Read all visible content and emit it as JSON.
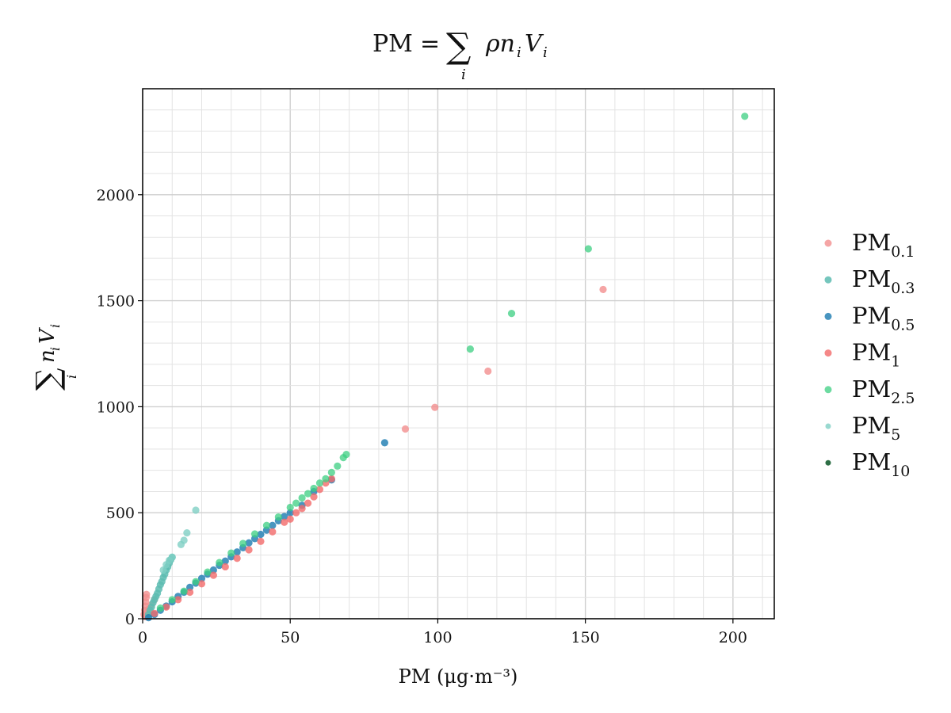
{
  "chart_data": {
    "type": "scatter",
    "title": "PM = ∑ ρ nᵢ Vᵢ",
    "title_parts": {
      "lhs": "PM",
      "eq": "=",
      "sum": "∑",
      "index": "i",
      "term": "ρn",
      "var": "V"
    },
    "xlabel": "PM (μg·m⁻³)",
    "ylabel": "∑ nᵢ Vᵢ",
    "ylabel_parts": {
      "sum": "∑",
      "index": "i",
      "term": "n",
      "var": "V"
    },
    "xlim": [
      0,
      214
    ],
    "ylim": [
      0,
      2500
    ],
    "xticks": [
      0,
      50,
      100,
      150,
      200
    ],
    "yticks": [
      0,
      500,
      1000,
      1500,
      2000
    ],
    "x_minor_step": 10,
    "y_minor_step": 100,
    "grid": true,
    "legend_position": "right",
    "series": [
      {
        "name": "PM0.1",
        "base": "PM",
        "sub": "0.1",
        "color": "#f28e8e",
        "opacity": 0.8,
        "points": [
          [
            0.5,
            20
          ],
          [
            0.7,
            40
          ],
          [
            0.9,
            60
          ],
          [
            1.0,
            80
          ],
          [
            1.2,
            100
          ],
          [
            1.3,
            115
          ],
          [
            0.8,
            10
          ],
          [
            1.5,
            30
          ],
          [
            2,
            45
          ],
          [
            3,
            65
          ],
          [
            4,
            90
          ],
          [
            89,
            895
          ],
          [
            99,
            997
          ],
          [
            117,
            1168
          ],
          [
            156,
            1553
          ]
        ]
      },
      {
        "name": "PM0.3",
        "base": "PM",
        "sub": "0.3",
        "color": "#5dbcb1",
        "opacity": 0.85,
        "points": [
          [
            2,
            20
          ],
          [
            2.5,
            40
          ],
          [
            3,
            55
          ],
          [
            3.5,
            75
          ],
          [
            4,
            90
          ],
          [
            4.5,
            105
          ],
          [
            5,
            120
          ],
          [
            5.5,
            140
          ],
          [
            6,
            160
          ],
          [
            6.5,
            175
          ],
          [
            7,
            195
          ],
          [
            7.5,
            210
          ],
          [
            8,
            230
          ],
          [
            8.5,
            245
          ],
          [
            9,
            262
          ],
          [
            9.5,
            278
          ],
          [
            10,
            290
          ]
        ]
      },
      {
        "name": "PM0.5",
        "base": "PM",
        "sub": "0.5",
        "color": "#1a7bb0",
        "opacity": 0.8,
        "points": [
          [
            2,
            5
          ],
          [
            4,
            20
          ],
          [
            6,
            40
          ],
          [
            8,
            60
          ],
          [
            10,
            80
          ],
          [
            12,
            105
          ],
          [
            14,
            125
          ],
          [
            16,
            148
          ],
          [
            18,
            168
          ],
          [
            20,
            190
          ],
          [
            22,
            210
          ],
          [
            24,
            230
          ],
          [
            26,
            252
          ],
          [
            28,
            272
          ],
          [
            30,
            292
          ],
          [
            32,
            315
          ],
          [
            34,
            335
          ],
          [
            36,
            358
          ],
          [
            38,
            378
          ],
          [
            40,
            398
          ],
          [
            42,
            418
          ],
          [
            44,
            440
          ],
          [
            46,
            462
          ],
          [
            48,
            482
          ],
          [
            50,
            500
          ],
          [
            54,
            535
          ],
          [
            58,
            600
          ],
          [
            64,
            655
          ],
          [
            82,
            830
          ]
        ]
      },
      {
        "name": "PM1",
        "base": "PM",
        "sub": "1",
        "color": "#f26a6a",
        "opacity": 0.8,
        "points": [
          [
            4,
            25
          ],
          [
            8,
            55
          ],
          [
            12,
            90
          ],
          [
            16,
            125
          ],
          [
            20,
            165
          ],
          [
            24,
            205
          ],
          [
            28,
            245
          ],
          [
            32,
            285
          ],
          [
            36,
            325
          ],
          [
            40,
            365
          ],
          [
            44,
            410
          ],
          [
            48,
            455
          ],
          [
            50,
            470
          ],
          [
            52,
            500
          ],
          [
            54,
            520
          ],
          [
            56,
            545
          ],
          [
            58,
            575
          ],
          [
            60,
            610
          ],
          [
            62,
            640
          ],
          [
            64,
            660
          ]
        ]
      },
      {
        "name": "PM2.5",
        "base": "PM",
        "sub": "2.5",
        "color": "#3ccf82",
        "opacity": 0.75,
        "points": [
          [
            6,
            50
          ],
          [
            10,
            90
          ],
          [
            14,
            130
          ],
          [
            18,
            175
          ],
          [
            22,
            220
          ],
          [
            26,
            265
          ],
          [
            30,
            310
          ],
          [
            34,
            355
          ],
          [
            38,
            400
          ],
          [
            42,
            440
          ],
          [
            46,
            480
          ],
          [
            50,
            525
          ],
          [
            52,
            545
          ],
          [
            54,
            570
          ],
          [
            56,
            590
          ],
          [
            58,
            615
          ],
          [
            60,
            640
          ],
          [
            62,
            660
          ],
          [
            64,
            690
          ],
          [
            66,
            720
          ],
          [
            68,
            760
          ],
          [
            69,
            775
          ],
          [
            111,
            1272
          ],
          [
            125,
            1440
          ],
          [
            151,
            1745
          ],
          [
            204,
            2370
          ]
        ]
      },
      {
        "name": "PM5",
        "base": "PM",
        "sub": "5",
        "color": "#7fd0c4",
        "opacity": 0.8,
        "points": [
          [
            7,
            230
          ],
          [
            8,
            255
          ],
          [
            9,
            275
          ],
          [
            10,
            290
          ],
          [
            13,
            350
          ],
          [
            14,
            370
          ],
          [
            15,
            405
          ],
          [
            18,
            512
          ]
        ]
      },
      {
        "name": "PM10",
        "base": "PM",
        "sub": "10",
        "color": "#2d6e45",
        "opacity": 1,
        "points": []
      }
    ]
  }
}
